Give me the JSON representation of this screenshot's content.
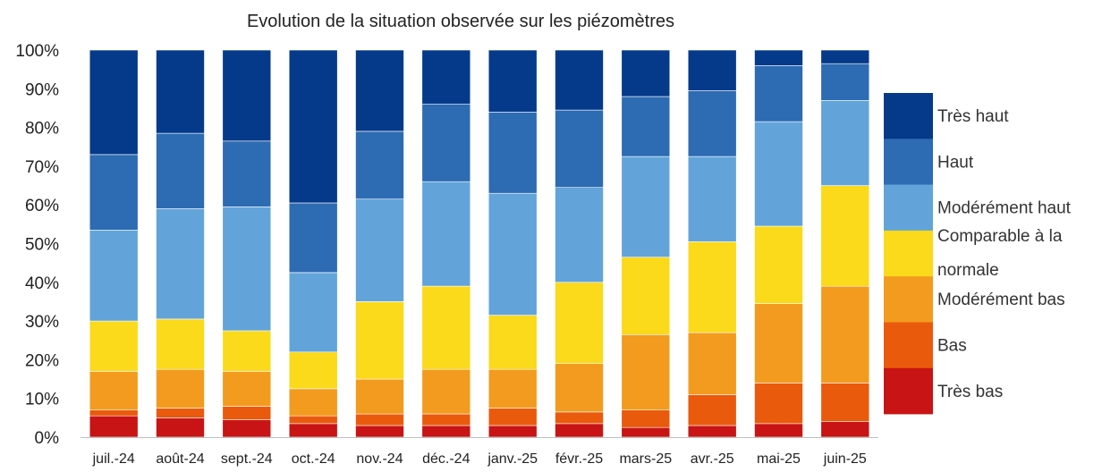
{
  "chart_data": {
    "type": "bar",
    "stacked": true,
    "title": "Evolution de la situation observée sur les  piézomètres",
    "xlabel": "",
    "ylabel": "",
    "ylim": [
      0,
      100
    ],
    "y_ticks": [
      "0%",
      "10%",
      "20%",
      "30%",
      "40%",
      "50%",
      "60%",
      "70%",
      "80%",
      "90%",
      "100%"
    ],
    "categories": [
      "juil.-24",
      "août-24",
      "sept.-24",
      "oct.-24",
      "nov.-24",
      "déc.-24",
      "janv.-25",
      "févr.-25",
      "mars-25",
      "avr.-25",
      "mai-25",
      "juin-25"
    ],
    "series": [
      {
        "name": "Très bas",
        "color": "#c81414",
        "values": [
          5.5,
          5,
          4.5,
          3.5,
          3,
          3,
          3,
          3.5,
          2.5,
          3,
          3.5,
          4
        ]
      },
      {
        "name": "Bas",
        "color": "#ea5a0c",
        "values": [
          1.5,
          2.5,
          3.5,
          2,
          3,
          3,
          4.5,
          3,
          4.5,
          8,
          10.5,
          10
        ]
      },
      {
        "name": "Modérément bas",
        "color": "#f39b1e",
        "values": [
          10,
          10,
          9,
          7,
          9,
          11.5,
          10,
          12.5,
          19.5,
          16,
          20.5,
          25
        ]
      },
      {
        "name": "Comparable à la normale",
        "color": "#fbd91b",
        "values": [
          13,
          13,
          10.5,
          9.5,
          20,
          21.5,
          14,
          21,
          20,
          23.5,
          20,
          26
        ]
      },
      {
        "name": "Modérément haut",
        "color": "#62a4da",
        "values": [
          23.5,
          28.5,
          32,
          20.5,
          26.5,
          27,
          31.5,
          24.5,
          26,
          22,
          27,
          22
        ]
      },
      {
        "name": "Haut",
        "color": "#2d6bb3",
        "values": [
          19.5,
          19.5,
          17,
          18,
          17.5,
          20,
          21,
          20,
          15.5,
          17,
          14.5,
          9.5
        ]
      },
      {
        "name": "Très haut",
        "color": "#053a8a",
        "values": [
          27,
          21.5,
          23.5,
          39.5,
          21,
          14,
          16,
          15.5,
          12,
          10.5,
          4,
          3.5
        ]
      }
    ],
    "grid": false,
    "legend_position": "right",
    "legend_order": [
      "Très haut",
      "Haut",
      "Modérément haut",
      "Comparable à la normale",
      "Modérément bas",
      "Bas",
      "Très bas"
    ],
    "legend_labels": {
      "Très haut": [
        "Très haut"
      ],
      "Haut": [
        "Haut"
      ],
      "Modérément haut": [
        "Modérément haut"
      ],
      "Comparable à la normale": [
        "Comparable à la",
        "normale"
      ],
      "Modérément bas": [
        "Modérément bas"
      ],
      "Bas": [
        "Bas"
      ],
      "Très bas": [
        "Très bas"
      ]
    }
  }
}
